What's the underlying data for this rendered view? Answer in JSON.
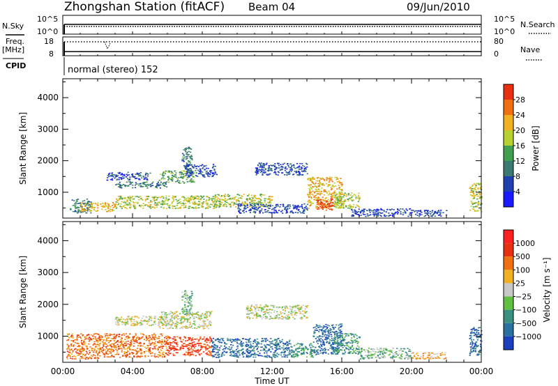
{
  "header": {
    "station_title": "Zhongshan Station (fitACF)",
    "beam": "Beam 04",
    "date": "09/Jun/2010"
  },
  "top_panels": {
    "nsky_label": "N.Sky",
    "nsearch_label": "N.Search",
    "noise_ticks": [
      "10^5",
      "10^0"
    ],
    "freq_label": "Freq.",
    "freq_unit": "[MHz]",
    "freq_ticks": [
      "18",
      "8"
    ],
    "nave_label": "Nave",
    "nave_ticks": [
      "80",
      "0"
    ],
    "cpid_label": "CPID",
    "cpid_text": "normal (stereo) 152"
  },
  "chart_data": [
    {
      "type": "heatmap",
      "name": "power-panel",
      "ylabel": "Slant Range [km]",
      "xlabel": "",
      "xlim": [
        0,
        24
      ],
      "ylim": [
        180,
        4600
      ],
      "yticks": [
        "1000",
        "2000",
        "3000",
        "4000"
      ],
      "xticks": [
        "00:00",
        "04:00",
        "08:00",
        "12:00",
        "16:00",
        "20:00",
        "00:00"
      ],
      "colorbar": {
        "label": "Power [dB]",
        "ticks": [
          "4",
          "8",
          "12",
          "16",
          "20",
          "24",
          "28"
        ],
        "colors": [
          "#1a1aff",
          "#2040b0",
          "#3a7a70",
          "#40a050",
          "#b8d030",
          "#f0b020",
          "#f07010",
          "#e83010"
        ]
      },
      "regions": [
        {
          "t0": 0.4,
          "t1": 1.6,
          "r0": 350,
          "r1": 800,
          "level": 2
        },
        {
          "t0": 1.0,
          "t1": 3.0,
          "r0": 400,
          "r1": 700,
          "level": 5
        },
        {
          "t0": 2.5,
          "t1": 5.0,
          "r0": 1400,
          "r1": 1650,
          "level": 1
        },
        {
          "t0": 3.0,
          "t1": 6.0,
          "r0": 1150,
          "r1": 1350,
          "level": 2
        },
        {
          "t0": 3.0,
          "t1": 9.0,
          "r0": 500,
          "r1": 900,
          "level": 4
        },
        {
          "t0": 5.5,
          "t1": 7.5,
          "r0": 1300,
          "r1": 1700,
          "level": 3
        },
        {
          "t0": 6.8,
          "t1": 7.4,
          "r0": 1700,
          "r1": 2450,
          "level": 2
        },
        {
          "t0": 7.0,
          "t1": 8.8,
          "r0": 1500,
          "r1": 1900,
          "level": 1
        },
        {
          "t0": 8.5,
          "t1": 12.0,
          "r0": 550,
          "r1": 950,
          "level": 4
        },
        {
          "t0": 10.0,
          "t1": 14.0,
          "r0": 350,
          "r1": 650,
          "level": 1
        },
        {
          "t0": 11.0,
          "t1": 14.0,
          "r0": 1550,
          "r1": 1950,
          "level": 1
        },
        {
          "t0": 14.0,
          "t1": 16.0,
          "r0": 500,
          "r1": 1500,
          "level": 5
        },
        {
          "t0": 14.5,
          "t1": 15.5,
          "r0": 450,
          "r1": 800,
          "level": 7
        },
        {
          "t0": 15.5,
          "t1": 17.0,
          "r0": 500,
          "r1": 1000,
          "level": 4
        },
        {
          "t0": 16.5,
          "t1": 20.0,
          "r0": 250,
          "r1": 500,
          "level": 1
        },
        {
          "t0": 20.0,
          "t1": 22.0,
          "r0": 250,
          "r1": 450,
          "level": 1
        },
        {
          "t0": 23.3,
          "t1": 24.0,
          "r0": 400,
          "r1": 1300,
          "level": 4
        }
      ]
    },
    {
      "type": "heatmap",
      "name": "velocity-panel",
      "ylabel": "Slant Range [km]",
      "xlabel": "Time UT",
      "xlim": [
        0,
        24
      ],
      "ylim": [
        180,
        4600
      ],
      "yticks": [
        "1000",
        "2000",
        "3000",
        "4000"
      ],
      "xticks": [
        "00:00",
        "04:00",
        "08:00",
        "12:00",
        "16:00",
        "20:00",
        "00:00"
      ],
      "colorbar": {
        "label": "Velocity [m s⁻¹]",
        "ticks": [
          "1000",
          "500",
          "100",
          "25",
          "−25",
          "−100",
          "−500",
          "−1000"
        ],
        "colors": [
          "#1a40c0",
          "#2a70a0",
          "#3a9080",
          "#60c040",
          "#c8c8c8",
          "#f0b020",
          "#f07010",
          "#e83010",
          "#ff2020"
        ]
      },
      "regions": [
        {
          "t0": 0.2,
          "t1": 2.0,
          "r0": 300,
          "r1": 1100,
          "level": 6
        },
        {
          "t0": 2.0,
          "t1": 6.0,
          "r0": 350,
          "r1": 1100,
          "level": 6
        },
        {
          "t0": 3.0,
          "t1": 6.0,
          "r0": 1350,
          "r1": 1650,
          "level": 4
        },
        {
          "t0": 5.5,
          "t1": 8.5,
          "r0": 1250,
          "r1": 1800,
          "level": 4
        },
        {
          "t0": 6.8,
          "t1": 7.4,
          "r0": 1700,
          "r1": 2450,
          "level": 3
        },
        {
          "t0": 6.0,
          "t1": 8.5,
          "r0": 400,
          "r1": 1000,
          "level": 7
        },
        {
          "t0": 8.5,
          "t1": 13.0,
          "r0": 350,
          "r1": 950,
          "level": 1
        },
        {
          "t0": 10.5,
          "t1": 14.0,
          "r0": 1550,
          "r1": 2000,
          "level": 4
        },
        {
          "t0": 13.0,
          "t1": 14.5,
          "r0": 350,
          "r1": 800,
          "level": 2
        },
        {
          "t0": 14.3,
          "t1": 16.0,
          "r0": 450,
          "r1": 1400,
          "level": 1
        },
        {
          "t0": 15.5,
          "t1": 17.0,
          "r0": 450,
          "r1": 1100,
          "level": 2
        },
        {
          "t0": 17.0,
          "t1": 20.0,
          "r0": 300,
          "r1": 650,
          "level": 3
        },
        {
          "t0": 20.0,
          "t1": 22.0,
          "r0": 300,
          "r1": 500,
          "level": 5
        },
        {
          "t0": 23.3,
          "t1": 24.0,
          "r0": 400,
          "r1": 1300,
          "level": 1
        }
      ]
    }
  ]
}
